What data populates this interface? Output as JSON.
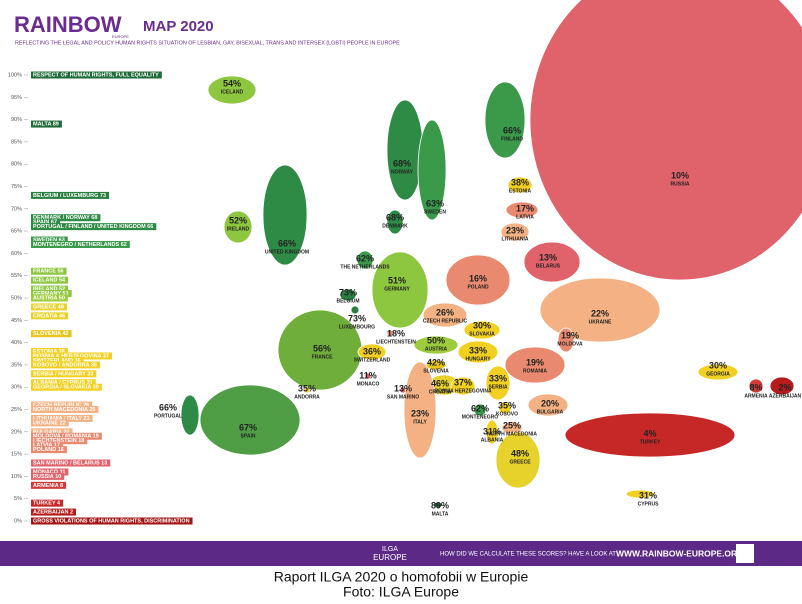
{
  "header": {
    "brand": "RAINBOW",
    "brand_sub": "EUROPE",
    "title": "MAP 2020",
    "subtitle": "REFLECTING THE LEGAL AND POLICY HUMAN RIGHTS SITUATION OF LESBIAN, GAY, BISEXUAL, TRANS AND INTERSEX (LGBTI) PEOPLE IN EUROPE"
  },
  "scale": [
    "100%",
    "95%",
    "90%",
    "85%",
    "80%",
    "75%",
    "70%",
    "65%",
    "60%",
    "55%",
    "50%",
    "45%",
    "40%",
    "35%",
    "30%",
    "25%",
    "20%",
    "15%",
    "10%",
    "5%",
    "0%"
  ],
  "ranking": [
    {
      "label": "RESPECT OF HUMAN RIGHTS, FULL EQUALITY",
      "value": 100,
      "color": "#1f6b3a"
    },
    {
      "label": "MALTA 89",
      "value": 89,
      "color": "#1f6b3a"
    },
    {
      "label": "BELGIUM / LUXEMBURG 73",
      "value": 73,
      "color": "#2a7f40"
    },
    {
      "label": "DENMARK / NORWAY 68",
      "value": 68,
      "color": "#2e8b45"
    },
    {
      "label": "SPAIN 67",
      "value": 67,
      "color": "#2e8b45"
    },
    {
      "label": "PORTUGAL / FINLAND / UNITED KINGDOM 66",
      "value": 66,
      "color": "#2e8b45"
    },
    {
      "label": "SWEDEN 63",
      "value": 63,
      "color": "#3a9a4a"
    },
    {
      "label": "MONTENEGRO / NETHERLANDS 62",
      "value": 62,
      "color": "#3a9a4a"
    },
    {
      "label": "FRANCE 56",
      "value": 56,
      "color": "#8dc63f"
    },
    {
      "label": "ICELAND 54",
      "value": 54,
      "color": "#8dc63f"
    },
    {
      "label": "IRELAND 52",
      "value": 52,
      "color": "#8dc63f"
    },
    {
      "label": "GERMANY 51",
      "value": 51,
      "color": "#8dc63f"
    },
    {
      "label": "AUSTRIA 50",
      "value": 50,
      "color": "#9ccb3b"
    },
    {
      "label": "GREECE 48",
      "value": 48,
      "color": "#e6d22a"
    },
    {
      "label": "CROATIA 46",
      "value": 46,
      "color": "#e6d22a"
    },
    {
      "label": "SLOVENIA 42",
      "value": 42,
      "color": "#e8c51e"
    },
    {
      "label": "ESTONIA 38",
      "value": 38,
      "color": "#f2d021"
    },
    {
      "label": "BOSNIA & HERZEGOVINA 37",
      "value": 37,
      "color": "#f2d021"
    },
    {
      "label": "SWITZERLAND 36",
      "value": 36,
      "color": "#f2d021"
    },
    {
      "label": "KOSOVO / ANDORRA 35",
      "value": 35,
      "color": "#f2d021"
    },
    {
      "label": "SERBIA / HUNGARY 33",
      "value": 33,
      "color": "#f2d021"
    },
    {
      "label": "ALBANIA / CYPRUS 31",
      "value": 31,
      "color": "#f2d021"
    },
    {
      "label": "GEORGIA / SLOVAKIA 30",
      "value": 30,
      "color": "#f2d021"
    },
    {
      "label": "CZECH REPUBLIC 26",
      "value": 26,
      "color": "#f4b183"
    },
    {
      "label": "NORTH MACEDONIA 25",
      "value": 25,
      "color": "#f4b183"
    },
    {
      "label": "LITHUANIA / ITALY 23",
      "value": 23,
      "color": "#f4b183"
    },
    {
      "label": "UKRAINE 22",
      "value": 22,
      "color": "#f4b183"
    },
    {
      "label": "BULGARIA 20",
      "value": 20,
      "color": "#f4b183"
    },
    {
      "label": "MOLDOVA / ROMANIA 19",
      "value": 19,
      "color": "#e98a70"
    },
    {
      "label": "LIECHTENSTEIN 18",
      "value": 18,
      "color": "#e98a70"
    },
    {
      "label": "LATVIA 17",
      "value": 17,
      "color": "#e98a70"
    },
    {
      "label": "POLAND 16",
      "value": 16,
      "color": "#e98a70"
    },
    {
      "label": "SAN MARINO / BELARUS 13",
      "value": 13,
      "color": "#e0626b"
    },
    {
      "label": "MONACO 11",
      "value": 11,
      "color": "#e0626b"
    },
    {
      "label": "RUSSIA 10",
      "value": 10,
      "color": "#e0626b"
    },
    {
      "label": "ARMENIA 8",
      "value": 8,
      "color": "#d33a3a"
    },
    {
      "label": "TURKEY 4",
      "value": 4,
      "color": "#c62828"
    },
    {
      "label": "AZERBAIJAN 2",
      "value": 2,
      "color": "#b71c1c"
    },
    {
      "label": "GROSS VIOLATIONS OF HUMAN RIGHTS, DISCRIMINATION",
      "value": 0,
      "color": "#a31515"
    }
  ],
  "countries": [
    {
      "name": "ICELAND",
      "score": "54%",
      "color": "#8dc63f"
    },
    {
      "name": "NORWAY",
      "score": "68%",
      "color": "#2e8b45"
    },
    {
      "name": "SWEDEN",
      "score": "63%",
      "color": "#3a9a4a"
    },
    {
      "name": "FINLAND",
      "score": "66%",
      "color": "#3a9a4a"
    },
    {
      "name": "RUSSIA",
      "score": "10%",
      "color": "#e0626b"
    },
    {
      "name": "ESTONIA",
      "score": "38%",
      "color": "#f2d021"
    },
    {
      "name": "LATVIA",
      "score": "17%",
      "color": "#e98a70"
    },
    {
      "name": "LITHUANIA",
      "score": "23%",
      "color": "#f4b183"
    },
    {
      "name": "DENMARK",
      "score": "68%",
      "color": "#2e8b45"
    },
    {
      "name": "IRELAND",
      "score": "52%",
      "color": "#8dc63f"
    },
    {
      "name": "UNITED KINGDOM",
      "score": "66%",
      "color": "#2e8b45"
    },
    {
      "name": "THE NETHERLANDS",
      "score": "62%",
      "color": "#3a9a4a"
    },
    {
      "name": "BELARUS",
      "score": "13%",
      "color": "#e0626b"
    },
    {
      "name": "POLAND",
      "score": "16%",
      "color": "#e98a70"
    },
    {
      "name": "GERMANY",
      "score": "51%",
      "color": "#8dc63f"
    },
    {
      "name": "BELGIUM",
      "score": "73%",
      "color": "#2a7f40"
    },
    {
      "name": "LUXEMBOURG",
      "score": "73%",
      "color": "#2a7f40"
    },
    {
      "name": "CZECH REPUBLIC",
      "score": "26%",
      "color": "#f4b183"
    },
    {
      "name": "SLOVAKIA",
      "score": "30%",
      "color": "#f2d021"
    },
    {
      "name": "UKRAINE",
      "score": "22%",
      "color": "#f4b183"
    },
    {
      "name": "FRANCE",
      "score": "56%",
      "color": "#6fae3a"
    },
    {
      "name": "LIECHTENSTEIN",
      "score": "18%",
      "color": "#e98a70"
    },
    {
      "name": "SWITZERLAND",
      "score": "36%",
      "color": "#f2d021"
    },
    {
      "name": "AUSTRIA",
      "score": "50%",
      "color": "#9ccb3b"
    },
    {
      "name": "HUNGARY",
      "score": "33%",
      "color": "#f2d021"
    },
    {
      "name": "MOLDOVA",
      "score": "19%",
      "color": "#e98a70"
    },
    {
      "name": "SLOVENIA",
      "score": "42%",
      "color": "#e8c51e"
    },
    {
      "name": "ROMANIA",
      "score": "19%",
      "color": "#e98a70"
    },
    {
      "name": "CROATIA",
      "score": "46%",
      "color": "#e6d22a"
    },
    {
      "name": "MONACO",
      "score": "11%",
      "color": "#e0626b"
    },
    {
      "name": "BOSNIA HERZEGOVINA",
      "score": "37%",
      "color": "#f2d021"
    },
    {
      "name": "SERBIA",
      "score": "33%",
      "color": "#f2d021"
    },
    {
      "name": "SAN MARINO",
      "score": "13%",
      "color": "#e0626b"
    },
    {
      "name": "ANDORRA",
      "score": "35%",
      "color": "#f2d021"
    },
    {
      "name": "PORTUGAL",
      "score": "66%",
      "color": "#2e8b45"
    },
    {
      "name": "SPAIN",
      "score": "67%",
      "color": "#4f9e45"
    },
    {
      "name": "ITALY",
      "score": "23%",
      "color": "#f4b183"
    },
    {
      "name": "MONTENEGRO",
      "score": "62%",
      "color": "#3a9a4a"
    },
    {
      "name": "KOSOVO",
      "score": "35%",
      "color": "#f2d021"
    },
    {
      "name": "ALBANIA",
      "score": "31%",
      "color": "#f2d021"
    },
    {
      "name": "NORTH MACEDONIA",
      "score": "25%",
      "color": "#f4b183"
    },
    {
      "name": "BULGARIA",
      "score": "20%",
      "color": "#f4b183"
    },
    {
      "name": "GEORGIA",
      "score": "30%",
      "color": "#f2d021"
    },
    {
      "name": "ARMENIA",
      "score": "8%",
      "color": "#d33a3a"
    },
    {
      "name": "AZERBAIJAN",
      "score": "2%",
      "color": "#b71c1c"
    },
    {
      "name": "GREECE",
      "score": "48%",
      "color": "#e6d22a"
    },
    {
      "name": "TURKEY",
      "score": "4%",
      "color": "#c62828"
    },
    {
      "name": "MALTA",
      "score": "89%",
      "color": "#1f6b3a"
    },
    {
      "name": "CYPRUS",
      "score": "31%",
      "color": "#f2d021"
    }
  ],
  "footer": {
    "logo_top": "ILGA",
    "logo_bottom": "EUROPE",
    "question": "HOW DID WE CALCULATE THESE SCORES? HAVE A LOOK AT",
    "url": "WWW.RAINBOW-EUROPE.ORG"
  },
  "caption": {
    "line1": "Raport ILGA 2020 o homofobii w Europie",
    "line2": "Foto: ILGA Europe"
  }
}
